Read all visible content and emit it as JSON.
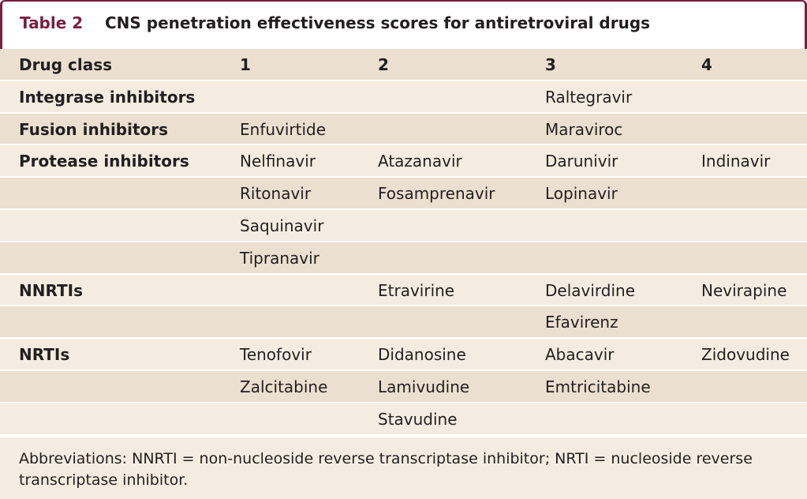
{
  "title": {
    "label": "Table 2",
    "text": "CNS penetration effectiveness scores for antiretroviral drugs"
  },
  "header": [
    "Drug class",
    "1",
    "2",
    "3",
    "4"
  ],
  "rows": [
    [
      "Integrase inhibitors",
      "",
      "",
      "Raltegravir",
      ""
    ],
    [
      "Fusion inhibitors",
      "Enfuvirtide",
      "",
      "Maraviroc",
      ""
    ],
    [
      "Protease inhibitors",
      "Nelfinavir",
      "Atazanavir",
      "Darunivir",
      "Indinavir"
    ],
    [
      "",
      "Ritonavir",
      "Fosamprenavir",
      "Lopinavir",
      ""
    ],
    [
      "",
      "Saquinavir",
      "",
      "",
      ""
    ],
    [
      "",
      "Tipranavir",
      "",
      "",
      ""
    ],
    [
      "NNRTIs",
      "",
      "Etravirine",
      "Delavirdine",
      "Nevirapine"
    ],
    [
      "",
      "",
      "",
      "Efavirenz",
      ""
    ],
    [
      "NRTIs",
      "Tenofovir",
      "Didanosine",
      "Abacavir",
      "Zidovudine"
    ],
    [
      "",
      "Zalcitabine",
      "Lamivudine",
      "Emtricitabine",
      ""
    ],
    [
      "",
      "",
      "Stavudine",
      "",
      ""
    ]
  ],
  "footnote": "Abbreviations: NNRTI = non-nucleoside reverse transcriptase inhibitor; NRTI = nucleoside reverse transcriptase inhibitor.",
  "colors": {
    "accent": "#7a1f3d",
    "row_light": "#f4ece0",
    "row_dark": "#ebdfcf"
  }
}
